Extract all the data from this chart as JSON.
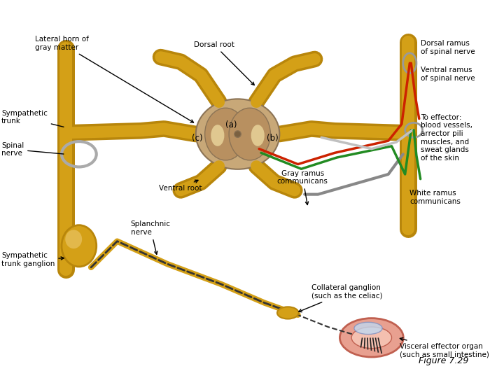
{
  "bg_color": "#ffffff",
  "figure_label": "Figure 7.29",
  "nerve_yellow": "#D4A017",
  "nerve_yellow_dark": "#B8860B",
  "nerve_yellow_light": "#F0D080",
  "spinal_cord_fill": "#C8A878",
  "spinal_cord_outline": "#8B7355",
  "gray_matter_fill": "#B89060",
  "nerve_red": "#CC2200",
  "nerve_green": "#228B22",
  "nerve_gray": "#888888",
  "intestine_fill": "#E8A090",
  "intestine_outline": "#C06050",
  "text_color": "#000000",
  "label_lateral_horn": "Lateral horn of\ngray matter",
  "label_dorsal_root": "Dorsal root",
  "label_sympathetic_trunk": "Sympathetic\ntrunk",
  "label_spinal_nerve": "Spinal\nnerve",
  "label_a": "(a)",
  "label_b": "(b)",
  "label_c": "(c)",
  "label_ventral_root": "Ventral root",
  "label_symp_ganglion": "Sympathetic\ntrunk ganglion",
  "label_splanchnic": "Splanchnic\nnerve",
  "label_gray_ramus": "Gray ramus\ncommunicans",
  "label_white_ramus": "White ramus\ncommunicans",
  "label_collateral": "Collateral ganglion\n(such as the celiac)",
  "label_dorsal_ramus": "Dorsal ramus\nof spinal nerve",
  "label_ventral_ramus": "Ventral ramus\nof spinal nerve",
  "label_to_effector": "To effector:\nblood vessels,\narrector pili\nmuscles, and\nsweat glands\nof the skin",
  "label_visceral": "Visceral effector organ\n(such as small intestine)",
  "fs": 7.5,
  "fs_fig": 9
}
